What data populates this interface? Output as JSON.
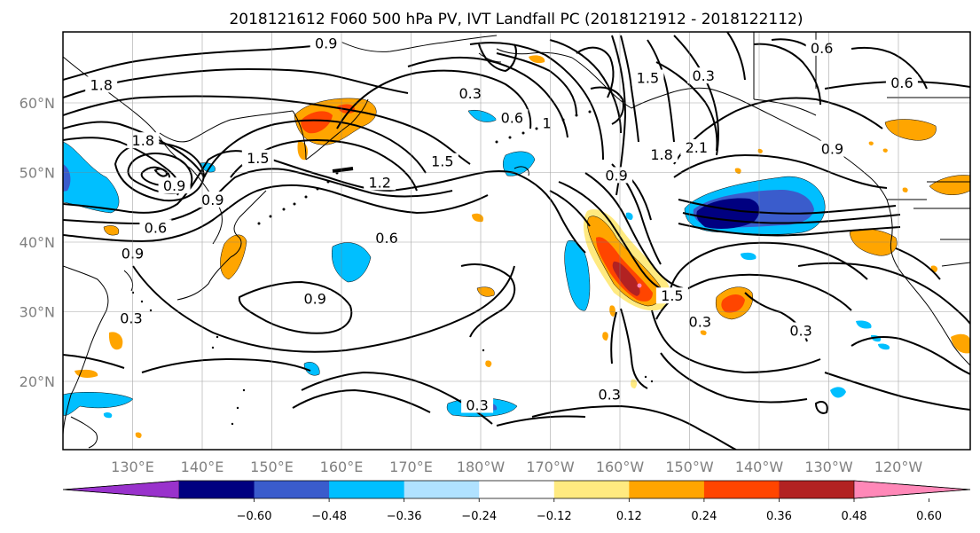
{
  "title": "2018121612 F060 500 hPa PV, IVT Landfall PC (2018121912 - 2018122112)",
  "map": {
    "lon_ticks": [
      "130°E",
      "140°E",
      "150°E",
      "160°E",
      "170°E",
      "180°W",
      "170°W",
      "160°W",
      "150°W",
      "140°W",
      "130°W",
      "120°W"
    ],
    "lat_ticks": [
      "60°N",
      "50°N",
      "40°N",
      "30°N",
      "20°N"
    ],
    "grid": true,
    "contour_color": "#000000",
    "contour_labels": [
      {
        "text": "0.9",
        "lon": 157.8,
        "lat": 68.5
      },
      {
        "text": "1.8",
        "lon": 125.5,
        "lat": 62.5
      },
      {
        "text": "1.8",
        "lon": 131.5,
        "lat": 54.5
      },
      {
        "text": "1.5",
        "lon": 148.0,
        "lat": 52.0
      },
      {
        "text": "1.2",
        "lon": 165.5,
        "lat": 48.5
      },
      {
        "text": "1.5",
        "lon": 174.5,
        "lat": 51.5
      },
      {
        "text": "0.9",
        "lon": 136.0,
        "lat": 48.0
      },
      {
        "text": "0.9",
        "lon": 141.5,
        "lat": 46.0
      },
      {
        "text": "0.6",
        "lon": 133.3,
        "lat": 42.0
      },
      {
        "text": "0.6",
        "lon": 166.5,
        "lat": 40.5
      },
      {
        "text": "0.9",
        "lon": 130.0,
        "lat": 38.3
      },
      {
        "text": "0.9",
        "lon": 156.2,
        "lat": 31.8
      },
      {
        "text": "0.3",
        "lon": 129.8,
        "lat": 29.0
      },
      {
        "text": "0.3",
        "lon": 178.5,
        "lat": 61.3
      },
      {
        "text": "0.6",
        "lon": 184.5,
        "lat": 57.8
      },
      {
        "text": "1",
        "lon": 189.5,
        "lat": 57.0
      },
      {
        "text": "1.5",
        "lon": 204.0,
        "lat": 63.5
      },
      {
        "text": "0.3",
        "lon": 212.0,
        "lat": 63.8
      },
      {
        "text": "1.8",
        "lon": 206.0,
        "lat": 52.5
      },
      {
        "text": "2.1",
        "lon": 211.0,
        "lat": 53.5
      },
      {
        "text": "0.9",
        "lon": 199.5,
        "lat": 49.5
      },
      {
        "text": "0.6",
        "lon": 229.0,
        "lat": 67.8
      },
      {
        "text": "0.6",
        "lon": 240.5,
        "lat": 62.8
      },
      {
        "text": "0.9",
        "lon": 230.5,
        "lat": 53.3
      },
      {
        "text": "1.5",
        "lon": 207.5,
        "lat": 32.2
      },
      {
        "text": "0.3",
        "lon": 211.5,
        "lat": 28.5
      },
      {
        "text": "0.3",
        "lon": 226.0,
        "lat": 27.2
      },
      {
        "text": "0.3",
        "lon": 198.5,
        "lat": 18.0
      },
      {
        "text": "0.3",
        "lon": 179.5,
        "lat": 16.5
      }
    ]
  },
  "colorbar": {
    "colors": [
      "#9932cc",
      "#000080",
      "#3a5ccc",
      "#00bfff",
      "#b0e2ff",
      "#ffffff",
      "#ffea80",
      "#ffa500",
      "#ff4500",
      "#b22222",
      "#ff88b8"
    ],
    "tick_labels": [
      "−0.60",
      "−0.48",
      "−0.36",
      "−0.24",
      "−0.12",
      "0.12",
      "0.24",
      "0.36",
      "0.48",
      "0.60"
    ]
  }
}
